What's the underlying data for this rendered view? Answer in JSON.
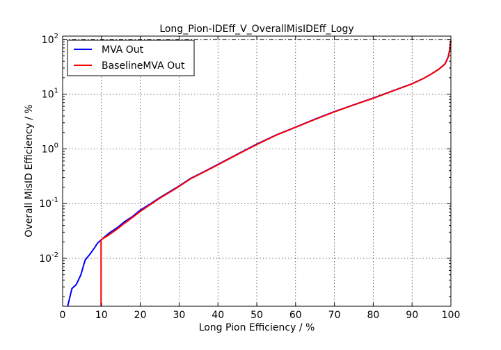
{
  "chart_data": {
    "type": "line",
    "title": "Long_Pion-IDEff_V_OverallMisIDEff_Logy",
    "xlabel": "Long Pion Efficiency / %",
    "ylabel": "Overall MisID Efficiency / %",
    "xlim": [
      0,
      100
    ],
    "ylim": [
      0.00133,
      115
    ],
    "yscale": "log",
    "grid": true,
    "legend_position": "top-left",
    "x_ticks": [
      "0",
      "10",
      "20",
      "30",
      "40",
      "50",
      "60",
      "70",
      "80",
      "90",
      "100"
    ],
    "y_ticks": [
      {
        "base": "10",
        "exp": "-2"
      },
      {
        "base": "10",
        "exp": "-1"
      },
      {
        "base": "10",
        "exp": "0"
      },
      {
        "base": "10",
        "exp": "1"
      },
      {
        "base": "10",
        "exp": "2"
      }
    ],
    "reference_line_y": 100,
    "series": [
      {
        "name": "MVA Out",
        "color": "#0000ff",
        "points": [
          [
            1.3,
            0.00133
          ],
          [
            2.4,
            0.0028
          ],
          [
            3.5,
            0.0033
          ],
          [
            4.7,
            0.005
          ],
          [
            5.8,
            0.0093
          ],
          [
            7.0,
            0.0118
          ],
          [
            8.2,
            0.0155
          ],
          [
            9.0,
            0.019
          ],
          [
            10.0,
            0.022
          ],
          [
            12.0,
            0.029
          ],
          [
            14.0,
            0.036
          ],
          [
            16.0,
            0.047
          ],
          [
            18.0,
            0.058
          ],
          [
            20.0,
            0.076
          ],
          [
            22.0,
            0.093
          ],
          [
            25.0,
            0.128
          ],
          [
            28.0,
            0.172
          ],
          [
            30.0,
            0.21
          ],
          [
            33.0,
            0.29
          ],
          [
            36.0,
            0.37
          ],
          [
            40.0,
            0.52
          ],
          [
            45.0,
            0.8
          ],
          [
            50.0,
            1.22
          ],
          [
            55.0,
            1.8
          ],
          [
            60.0,
            2.5
          ],
          [
            65.0,
            3.5
          ],
          [
            70.0,
            4.8
          ],
          [
            75.0,
            6.4
          ],
          [
            80.0,
            8.5
          ],
          [
            85.0,
            11.5
          ],
          [
            90.0,
            15.5
          ],
          [
            93.0,
            19.5
          ],
          [
            95.0,
            23.5
          ],
          [
            97.0,
            29.0
          ],
          [
            98.5,
            36.0
          ],
          [
            99.3,
            48.0
          ],
          [
            99.7,
            65.0
          ],
          [
            100.0,
            95.0
          ]
        ]
      },
      {
        "name": "BaselineMVA Out",
        "color": "#ff0000",
        "points": [
          [
            9.9,
            0.00133
          ],
          [
            9.9,
            0.021
          ],
          [
            10.0,
            0.022
          ],
          [
            12.0,
            0.027
          ],
          [
            14.0,
            0.034
          ],
          [
            16.0,
            0.044
          ],
          [
            18.0,
            0.056
          ],
          [
            20.0,
            0.072
          ],
          [
            22.0,
            0.09
          ],
          [
            25.0,
            0.125
          ],
          [
            28.0,
            0.168
          ],
          [
            30.0,
            0.206
          ],
          [
            33.0,
            0.285
          ],
          [
            36.0,
            0.365
          ],
          [
            40.0,
            0.51
          ],
          [
            45.0,
            0.79
          ],
          [
            50.0,
            1.2
          ],
          [
            55.0,
            1.78
          ],
          [
            60.0,
            2.48
          ],
          [
            65.0,
            3.45
          ],
          [
            70.0,
            4.75
          ],
          [
            75.0,
            6.35
          ],
          [
            80.0,
            8.4
          ],
          [
            85.0,
            11.4
          ],
          [
            90.0,
            15.4
          ],
          [
            93.0,
            19.4
          ],
          [
            95.0,
            23.4
          ],
          [
            97.0,
            28.8
          ],
          [
            98.5,
            35.5
          ],
          [
            99.3,
            47.0
          ],
          [
            99.7,
            64.0
          ],
          [
            100.0,
            95.0
          ]
        ]
      }
    ]
  }
}
